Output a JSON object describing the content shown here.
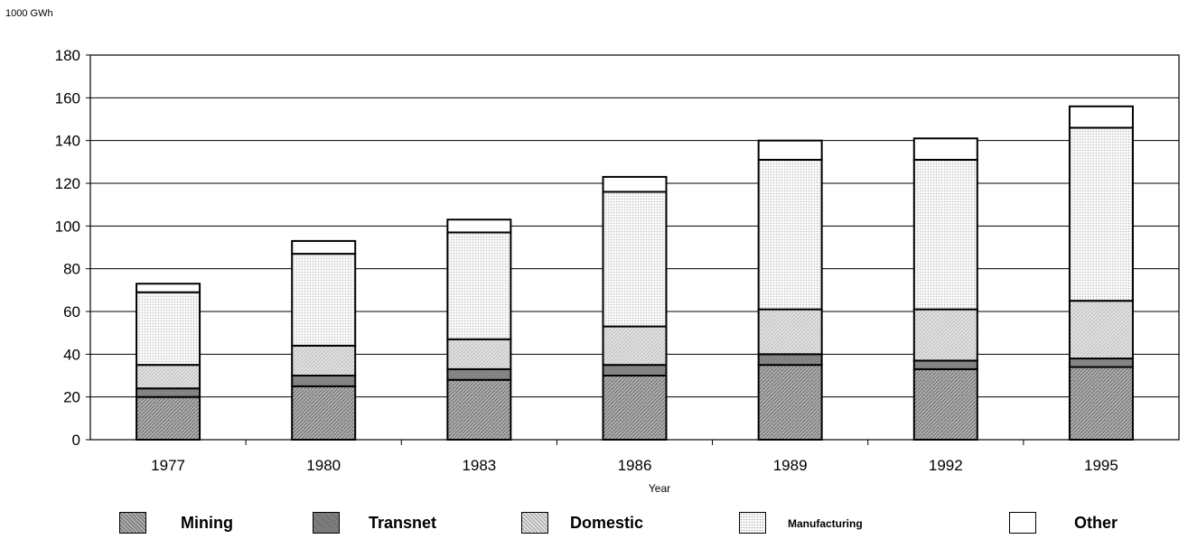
{
  "chart_data": {
    "type": "bar",
    "stacked": true,
    "unit_label": "1000 GWh",
    "xlabel": "Year",
    "ylabel": "",
    "ylim": [
      0,
      180
    ],
    "yticks": [
      "0",
      "20",
      "40",
      "60",
      "80",
      "100",
      "120",
      "140",
      "160",
      "180"
    ],
    "grid": true,
    "legend_position": "bottom",
    "categories": [
      "1977",
      "1980",
      "1983",
      "1986",
      "1989",
      "1992",
      "1995"
    ],
    "series": [
      {
        "name": "Mining",
        "values": [
          20,
          25,
          28,
          30,
          35,
          33,
          34
        ],
        "pattern": "dense",
        "color": "#a8a8a8"
      },
      {
        "name": "Transnet",
        "values": [
          4,
          5,
          5,
          5,
          5,
          4,
          4
        ],
        "pattern": "medium",
        "color": "#8c8c8c"
      },
      {
        "name": "Domestic",
        "values": [
          11,
          14,
          14,
          18,
          21,
          24,
          27
        ],
        "pattern": "light",
        "color": "#d4d4d4"
      },
      {
        "name": "Manufacturing",
        "values": [
          34,
          43,
          50,
          63,
          70,
          70,
          81
        ],
        "pattern": "dotted",
        "color": "#e8e8e8"
      },
      {
        "name": "Other",
        "values": [
          4,
          6,
          6,
          7,
          9,
          10,
          10
        ],
        "pattern": "none",
        "color": "#ffffff"
      }
    ]
  },
  "legend": {
    "manufacturing_text": "Manufacturing"
  }
}
